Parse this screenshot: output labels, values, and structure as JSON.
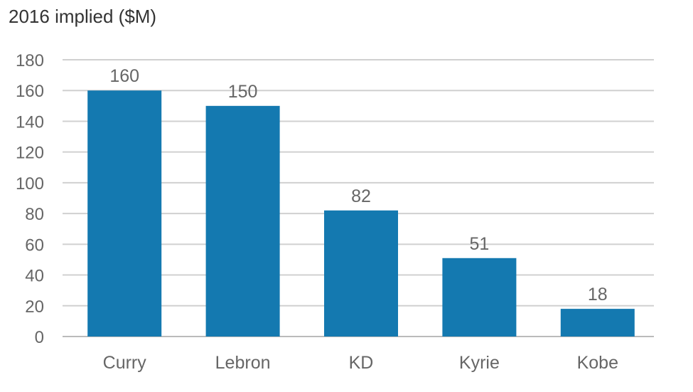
{
  "chart_data": {
    "type": "bar",
    "title": "2016 implied ($M)",
    "xlabel": "",
    "ylabel": "",
    "categories": [
      "Curry",
      "Lebron",
      "KD",
      "Kyrie",
      "Kobe"
    ],
    "values": [
      160,
      150,
      82,
      51,
      18
    ],
    "data_labels": [
      "160",
      "150",
      "82",
      "51",
      "18"
    ],
    "ylim": [
      0,
      180
    ],
    "yticks": [
      0,
      20,
      40,
      60,
      80,
      100,
      120,
      140,
      160,
      180
    ],
    "grid": true,
    "legend": "none",
    "bar_color": "#1479b0",
    "grid_color": "#d0d0d0",
    "text_color": "#666666"
  }
}
